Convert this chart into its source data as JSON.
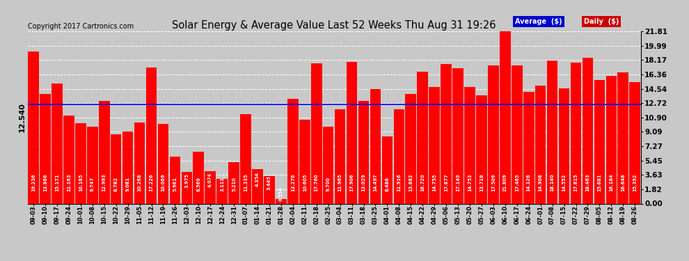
{
  "title": "Solar Energy & Average Value Last 52 Weeks Thu Aug 31 19:26",
  "copyright": "Copyright 2017 Cartronics.com",
  "average_value": 12.54,
  "average_label": "12.540",
  "bar_color": "#FF0000",
  "average_line_color": "#0000FF",
  "plot_bg_color": "#C8C8C8",
  "grid_color": "#FFFFFF",
  "yticks_right": [
    0.0,
    1.82,
    3.63,
    5.45,
    7.27,
    9.09,
    10.9,
    12.72,
    14.54,
    16.36,
    18.17,
    19.99,
    21.81
  ],
  "legend_avg_color": "#0000CC",
  "legend_daily_color": "#CC0000",
  "categories": [
    "09-03",
    "09-10",
    "09-17",
    "09-24",
    "10-01",
    "10-08",
    "10-15",
    "10-22",
    "10-29",
    "11-05",
    "11-12",
    "11-19",
    "11-26",
    "12-03",
    "12-10",
    "12-17",
    "12-24",
    "12-31",
    "01-07",
    "01-14",
    "01-21",
    "01-28",
    "02-04",
    "02-11",
    "02-18",
    "02-25",
    "03-04",
    "03-11",
    "03-18",
    "03-25",
    "04-01",
    "04-08",
    "04-15",
    "04-22",
    "04-29",
    "05-06",
    "05-13",
    "05-20",
    "05-27",
    "06-03",
    "06-10",
    "06-17",
    "06-24",
    "07-01",
    "07-08",
    "07-15",
    "07-22",
    "07-29",
    "08-05",
    "08-12",
    "08-19",
    "08-26"
  ],
  "values": [
    19.236,
    13.866,
    15.171,
    11.163,
    10.185,
    9.747,
    12.993,
    8.782,
    9.081,
    10.268,
    17.226,
    10.069,
    5.961,
    3.975,
    6.569,
    4.074,
    3.111,
    5.21,
    11.335,
    4.354,
    3.445,
    0.554,
    13.276,
    10.605,
    17.76,
    9.7,
    11.965,
    17.906,
    13.029,
    14.497,
    8.486,
    11.916,
    13.882,
    16.72,
    14.755,
    17.677,
    17.149,
    14.753,
    13.718,
    17.509,
    21.809,
    17.465,
    14.126,
    14.908,
    18.14,
    14.552,
    17.815,
    18.463,
    15.681,
    16.184,
    16.648,
    15.392
  ],
  "ylim_max": 21.81
}
